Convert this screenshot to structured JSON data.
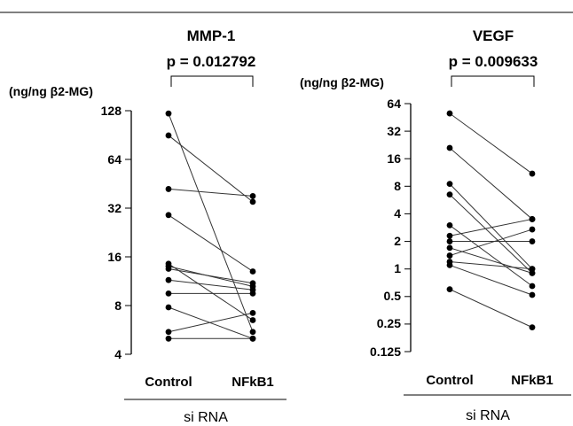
{
  "chart_data": [
    {
      "type": "scatter",
      "subtype": "paired-dot",
      "title": "MMP-1",
      "subtitle": "p = 0.012792",
      "ylabel": "(ng/ng β2-MG)",
      "yscale": "log2",
      "ylim": [
        4,
        128
      ],
      "yticks": [
        "4",
        "8",
        "16",
        "32",
        "64",
        "128"
      ],
      "categories": [
        "Control",
        "NFkB1"
      ],
      "group_label": "si RNA",
      "grid": false,
      "pairs": [
        [
          123,
          5.5
        ],
        [
          90,
          35
        ],
        [
          42,
          38
        ],
        [
          29,
          13
        ],
        [
          14.5,
          6.5
        ],
        [
          14,
          10.5
        ],
        [
          13.5,
          11
        ],
        [
          11.5,
          10
        ],
        [
          9.5,
          9.5
        ],
        [
          7.8,
          5
        ],
        [
          5.5,
          7.2
        ],
        [
          5,
          5
        ]
      ]
    },
    {
      "type": "scatter",
      "subtype": "paired-dot",
      "title": "VEGF",
      "subtitle": "p = 0.009633",
      "ylabel": "(ng/ng β2-MG)",
      "yscale": "log2",
      "ylim": [
        0.125,
        64
      ],
      "yticks": [
        "0.125",
        "0.25",
        "0.5",
        "1",
        "2",
        "4",
        "8",
        "16",
        "32",
        "64"
      ],
      "categories": [
        "Control",
        "NFkB1"
      ],
      "group_label": "si RNA",
      "grid": false,
      "pairs": [
        [
          50,
          11
        ],
        [
          21,
          3.5
        ],
        [
          8.5,
          1
        ],
        [
          6.5,
          0.9
        ],
        [
          3,
          0.65
        ],
        [
          2.3,
          3.5
        ],
        [
          2,
          2
        ],
        [
          1.7,
          0.9
        ],
        [
          1.4,
          2.7
        ],
        [
          1.2,
          1
        ],
        [
          1.1,
          0.52
        ],
        [
          0.6,
          0.23
        ]
      ]
    }
  ]
}
